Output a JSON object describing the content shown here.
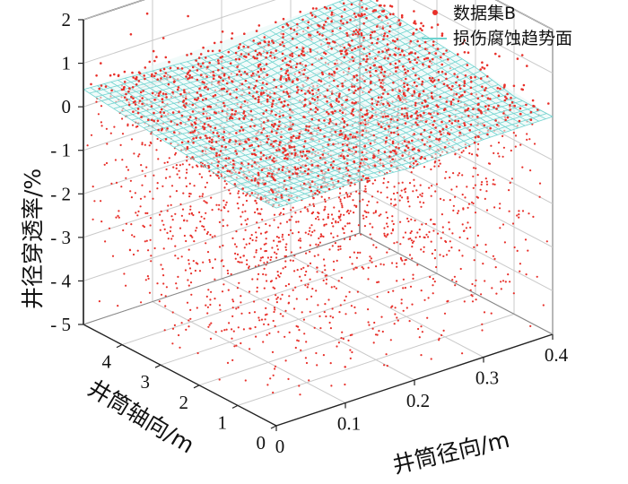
{
  "chart_data": {
    "type": "scatter",
    "subtype": "3d-scatter-with-surface",
    "title": "",
    "xlabel": "井筒径向/m",
    "ylabel": "井筒轴向/m",
    "zlabel": "井径穿透率/%",
    "xlim": [
      0,
      0.4
    ],
    "ylim": [
      0,
      5
    ],
    "zlim": [
      -5,
      2
    ],
    "x_ticks": [
      "0",
      "0.1",
      "0.2",
      "0.3",
      "0.4"
    ],
    "y_ticks": [
      "0",
      "1",
      "2",
      "3",
      "4"
    ],
    "z_ticks": [
      "2",
      "1",
      "0",
      "- 1",
      "- 2",
      "- 3",
      "- 4",
      "- 5"
    ],
    "grid": true,
    "legend_position": "top-right",
    "series": [
      {
        "name": "数据集B",
        "kind": "points",
        "color": "#e8302a",
        "marker": "dot",
        "z_typical_range": [
          -5,
          2
        ]
      },
      {
        "name": "损伤腐蚀趋势面",
        "kind": "surface",
        "color": "#6fd3cf",
        "surface_z": [
          [
            0.0,
            0.0,
            -0.1,
            0.0,
            0.0
          ],
          [
            0.0,
            -0.1,
            0.0,
            0.1,
            0.0
          ],
          [
            0.1,
            0.0,
            -0.1,
            0.0,
            0.2
          ],
          [
            0.2,
            0.1,
            0.0,
            0.2,
            0.3
          ],
          [
            0.3,
            0.2,
            0.1,
            0.3,
            0.4
          ],
          [
            0.4,
            0.3,
            0.2,
            0.4,
            0.5
          ]
        ],
        "surface_x": [
          0,
          0.1,
          0.2,
          0.3,
          0.4
        ],
        "surface_y": [
          0,
          1,
          2,
          3,
          4,
          5
        ]
      }
    ]
  }
}
